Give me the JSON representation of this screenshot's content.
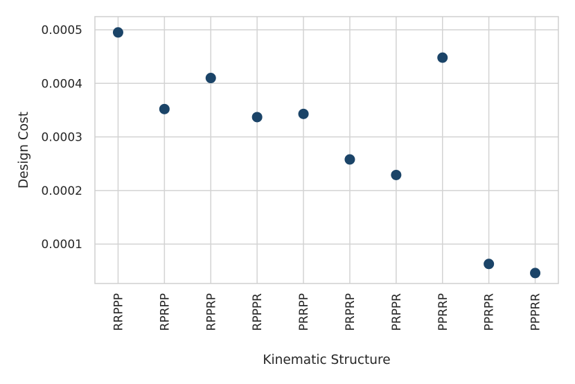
{
  "chart_data": {
    "type": "scatter",
    "title": "",
    "xlabel": "Kinematic Structure",
    "ylabel": "Design Cost",
    "categories": [
      "RRPPP",
      "RPRPP",
      "RPPRP",
      "RPPPR",
      "PRRPP",
      "PRPRP",
      "PRPPR",
      "PPRRP",
      "PPRPR",
      "PPPRR"
    ],
    "values": [
      0.000495,
      0.000352,
      0.00041,
      0.000337,
      0.000343,
      0.000258,
      0.000229,
      0.000448,
      6.3e-05,
      4.6e-05
    ],
    "yticks": [
      0.0001,
      0.0002,
      0.0003,
      0.0004,
      0.0005
    ],
    "ytick_labels": [
      "0.0001",
      "0.0002",
      "0.0003",
      "0.0004",
      "0.0005"
    ],
    "ylim": [
      2.65e-05,
      0.0005245
    ],
    "grid": true,
    "marker_color": "#1b4468",
    "grid_color": "#d3d3d3",
    "spine_color": "#cfcfcf"
  }
}
